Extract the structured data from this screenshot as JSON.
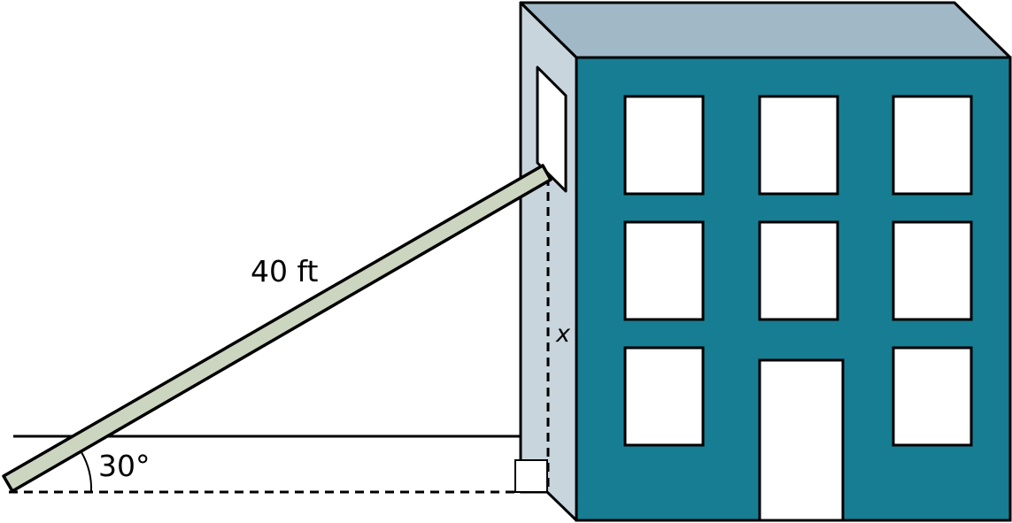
{
  "labels": {
    "ladder_length": "40 ft",
    "angle": "30°",
    "height_variable": "x"
  },
  "colors": {
    "building_front": "#177d92",
    "building_top": "#a1b8c6",
    "building_side": "#c8d5dd",
    "ladder": "#ccd5c0",
    "window": "#ffffff",
    "outline": "#000000"
  }
}
